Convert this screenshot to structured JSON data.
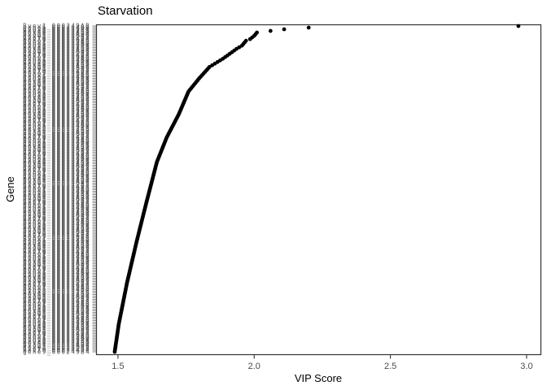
{
  "chart_data": {
    "type": "scatter",
    "title": "Starvation",
    "xlabel": "VIP Score",
    "ylabel": "Gene",
    "xlim": [
      1.4195,
      3.051
    ],
    "x_ticks": [
      {
        "value": 1.5,
        "label": "1.5"
      },
      {
        "value": 2.0,
        "label": "2.0"
      },
      {
        "value": 2.5,
        "label": "2.5"
      },
      {
        "value": 3.0,
        "label": "3.0"
      }
    ],
    "grid": "off",
    "legend": "none",
    "n_genes": 200,
    "point_color": "#000000",
    "point_radius": 2.4,
    "panel_border_color": "#333333",
    "tick_label_color": "#4d4d4d",
    "axis_title_color": "#000000",
    "title_color": "#000000",
    "rank_vip_curve_note": "VIP score as a function of gene rank (0 = highest). Individual dots overlap into a dense curve; values estimated from axis.",
    "rank_vip_curve": [
      [
        0,
        2.97
      ],
      [
        1,
        2.2
      ],
      [
        2,
        2.11
      ],
      [
        4,
        2.01
      ],
      [
        6,
        2.0
      ],
      [
        8,
        1.985
      ],
      [
        9,
        1.97
      ],
      [
        12,
        1.955
      ],
      [
        14,
        1.935
      ],
      [
        17,
        1.91
      ],
      [
        20,
        1.885
      ],
      [
        25,
        1.836
      ],
      [
        32,
        1.798
      ],
      [
        40,
        1.759
      ],
      [
        54,
        1.723
      ],
      [
        68,
        1.679
      ],
      [
        83,
        1.643
      ],
      [
        108,
        1.604
      ],
      [
        132,
        1.568
      ],
      [
        157,
        1.533
      ],
      [
        182,
        1.503
      ],
      [
        199,
        1.488
      ]
    ],
    "top_outlier_scores": [
      2.97,
      2.2,
      2.11
    ],
    "y_axis_labels": {
      "illegible": true,
      "note": "Hundreds of gene identifiers rendered overlapping; individual names not readable in source image.",
      "simulated_label_pool": [
        "Bvev1_000249AB",
        "gene5_000244B0",
        "gvev8_00024940",
        "Beve2_0002434B",
        "gev40_000248B0",
        "Bvag4_00024AB4",
        "geve3_00024B49",
        "gvev6_000242B8",
        "Bev70_00024434",
        "gene9_000249B4"
      ],
      "label_color": "#555555"
    }
  }
}
